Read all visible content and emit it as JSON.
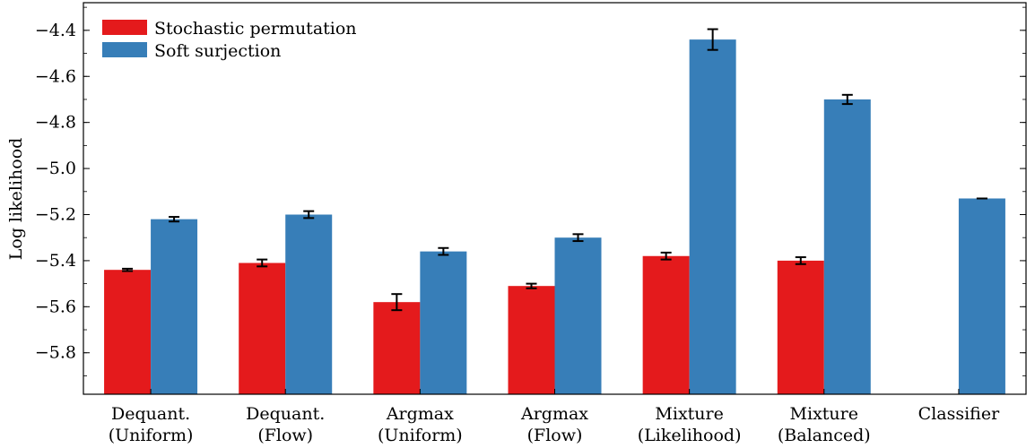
{
  "chart_data": {
    "type": "bar",
    "title": "",
    "xlabel": "",
    "ylabel": "Log likelihood",
    "ylim": [
      -5.98,
      -4.28
    ],
    "yticks": [
      -5.8,
      -5.6,
      -5.4,
      -5.2,
      -5.0,
      -4.8,
      -4.6,
      -4.4
    ],
    "ytick_labels": [
      "−5.8",
      "−5.6",
      "−5.4",
      "−5.2",
      "−5.0",
      "−4.8",
      "−4.6",
      "−4.4"
    ],
    "categories": [
      [
        "Dequant.",
        "(Uniform)"
      ],
      [
        "Dequant.",
        "(Flow)"
      ],
      [
        "Argmax",
        "(Uniform)"
      ],
      [
        "Argmax",
        "(Flow)"
      ],
      [
        "Mixture",
        "(Likelihood)"
      ],
      [
        "Mixture",
        "(Balanced)"
      ],
      [
        "Classifier",
        ""
      ]
    ],
    "series": [
      {
        "name": "Stochastic permutation",
        "color": "#e41a1c",
        "values": [
          -5.44,
          -5.41,
          -5.58,
          -5.51,
          -5.38,
          -5.4,
          null
        ],
        "errors": [
          0.005,
          0.015,
          0.035,
          0.01,
          0.015,
          0.015,
          null
        ]
      },
      {
        "name": "Soft surjection",
        "color": "#377eb8",
        "values": [
          -5.22,
          -5.2,
          -5.36,
          -5.3,
          -4.44,
          -4.7,
          -5.13
        ],
        "errors": [
          0.01,
          0.015,
          0.015,
          0.015,
          0.045,
          0.02,
          0.0
        ]
      }
    ],
    "grid": false,
    "legend_position": "top-left"
  }
}
